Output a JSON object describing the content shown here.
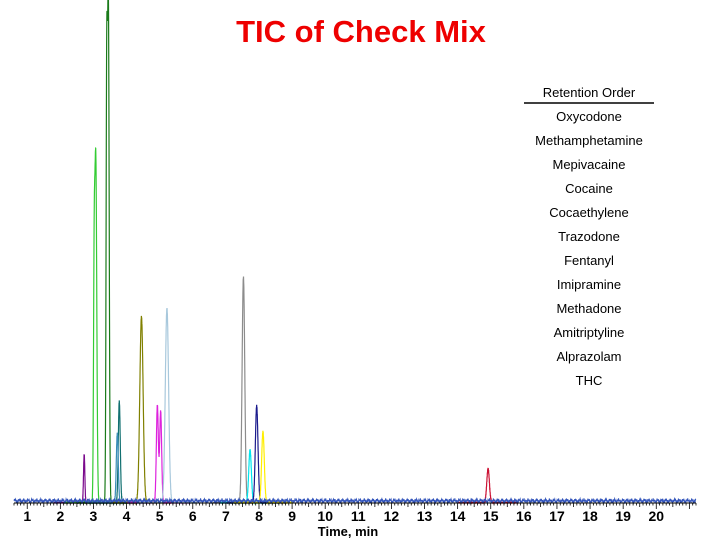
{
  "chart_data": {
    "type": "line",
    "title": "TIC of Check Mix",
    "xlabel": "Time, min",
    "ylabel": "",
    "xlim": [
      0.6,
      21.2
    ],
    "ylim": [
      0,
      100
    ],
    "x_ticks": [
      "1",
      "2",
      "3",
      "4",
      "5",
      "6",
      "7",
      "8",
      "9",
      "10",
      "11",
      "12",
      "13",
      "14",
      "15",
      "16",
      "17",
      "18",
      "19",
      "20"
    ],
    "grid": false,
    "legend": {
      "position": "top-right",
      "title": "Retention Order",
      "entries": [
        "Oxycodone",
        "Methamphetamine",
        "Mepivacaine",
        "Cocaine",
        "Cocaethylene",
        "Trazodone",
        "Fentanyl",
        "Imipramine",
        "Methadone",
        "Amitriptyline",
        "Alprazolam",
        "THC"
      ]
    },
    "series": [
      {
        "color": "#7b0a8c",
        "peaks": [
          {
            "x": 2.72,
            "y": 9.8,
            "w": 0.02
          }
        ]
      },
      {
        "color": "#33cc33",
        "peaks": [
          {
            "x": 3.07,
            "y": 69.5,
            "w": 0.03
          },
          {
            "x": 3.02,
            "y": 39,
            "w": 0.02
          }
        ]
      },
      {
        "color": "#1a7a1a",
        "peaks": [
          {
            "x": 3.45,
            "y": 100,
            "w": 0.025
          },
          {
            "x": 3.4,
            "y": 81,
            "w": 0.02
          }
        ]
      },
      {
        "color": "#117070",
        "peaks": [
          {
            "x": 3.78,
            "y": 20.5,
            "w": 0.03
          }
        ]
      },
      {
        "color": "#3a8cb8",
        "peaks": [
          {
            "x": 3.72,
            "y": 14,
            "w": 0.03
          }
        ]
      },
      {
        "color": "#808000",
        "peaks": [
          {
            "x": 4.45,
            "y": 37.6,
            "w": 0.05
          }
        ]
      },
      {
        "color": "#dd22dd",
        "peaks": [
          {
            "x": 4.93,
            "y": 19.7,
            "w": 0.03
          },
          {
            "x": 5.03,
            "y": 18.5,
            "w": 0.03
          }
        ]
      },
      {
        "color": "#a8c8dc",
        "peaks": [
          {
            "x": 5.22,
            "y": 39.3,
            "w": 0.05
          }
        ]
      },
      {
        "color": "#8c8c8c",
        "peaks": [
          {
            "x": 7.53,
            "y": 45.6,
            "w": 0.04
          }
        ]
      },
      {
        "color": "#00e5ee",
        "peaks": [
          {
            "x": 7.73,
            "y": 10.7,
            "w": 0.04
          }
        ]
      },
      {
        "color": "#1a1a8c",
        "peaks": [
          {
            "x": 7.93,
            "y": 19.6,
            "w": 0.04
          }
        ]
      },
      {
        "color": "#ffee00",
        "peaks": [
          {
            "x": 8.12,
            "y": 14.4,
            "w": 0.04
          }
        ]
      },
      {
        "color": "#cc1133",
        "peaks": [
          {
            "x": 14.92,
            "y": 6.9,
            "w": 0.04
          }
        ]
      }
    ]
  }
}
